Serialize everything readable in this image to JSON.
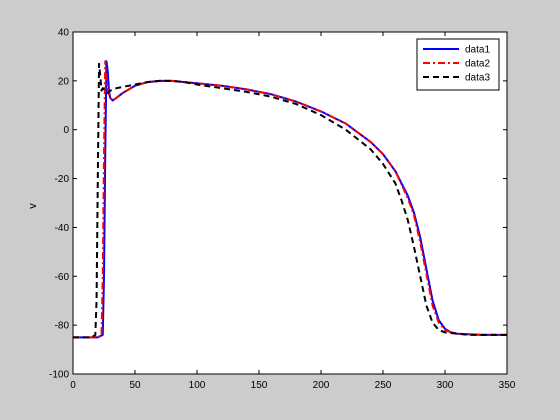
{
  "chart_data": {
    "type": "line",
    "title": "",
    "xlabel": "",
    "ylabel": "v",
    "xlim": [
      0,
      350
    ],
    "ylim": [
      -100,
      40
    ],
    "xticks": [
      0,
      50,
      100,
      150,
      200,
      250,
      300,
      350
    ],
    "yticks": [
      -100,
      -80,
      -60,
      -40,
      -20,
      0,
      20,
      40
    ],
    "grid": false,
    "legend_position": "top-right",
    "series": [
      {
        "name": "data1",
        "color": "#0000ff",
        "style": "solid",
        "x": [
          0,
          20,
          24,
          25,
          26,
          27,
          28,
          29,
          30,
          32,
          35,
          40,
          50,
          60,
          70,
          80,
          90,
          100,
          120,
          140,
          160,
          180,
          200,
          220,
          240,
          250,
          260,
          270,
          275,
          280,
          285,
          290,
          295,
          300,
          305,
          310,
          320,
          330,
          340,
          350
        ],
        "y": [
          -85,
          -85,
          -84,
          -60,
          -10,
          28,
          24,
          16,
          13,
          12,
          13,
          15,
          18,
          19.5,
          20,
          20,
          19.5,
          19,
          18,
          16.5,
          14.5,
          11.5,
          7.5,
          2.5,
          -5,
          -10,
          -17,
          -27,
          -34,
          -44,
          -57,
          -70,
          -78,
          -81.5,
          -83,
          -83.5,
          -83.8,
          -84,
          -84,
          -84
        ]
      },
      {
        "name": "data2",
        "color": "#ff0000",
        "style": "dashdot",
        "x": [
          0,
          20,
          23,
          24,
          25,
          26,
          27,
          28,
          30,
          32,
          35,
          40,
          50,
          60,
          70,
          80,
          90,
          100,
          120,
          140,
          160,
          180,
          200,
          220,
          240,
          250,
          260,
          270,
          275,
          280,
          285,
          290,
          295,
          300,
          305,
          310,
          320,
          330,
          340,
          350
        ],
        "y": [
          -85,
          -85,
          -84,
          -60,
          -10,
          28,
          22,
          16,
          13,
          12,
          13,
          15,
          18,
          19.5,
          20,
          20,
          19.5,
          19,
          18,
          16.5,
          14.5,
          11.5,
          7.5,
          2.5,
          -5,
          -10,
          -17,
          -28,
          -35,
          -46,
          -59,
          -72,
          -79,
          -82,
          -83,
          -83.5,
          -83.8,
          -84,
          -84,
          -84
        ]
      },
      {
        "name": "data3",
        "color": "#000000",
        "style": "dashed",
        "x": [
          0,
          15,
          18,
          19,
          20,
          21,
          22,
          23,
          24,
          26,
          28,
          30,
          35,
          40,
          50,
          60,
          70,
          80,
          90,
          100,
          120,
          140,
          160,
          180,
          200,
          220,
          240,
          250,
          260,
          265,
          270,
          275,
          280,
          285,
          290,
          295,
          300,
          310,
          320,
          330,
          340,
          350
        ],
        "y": [
          -85,
          -85,
          -84,
          -70,
          -20,
          27,
          22,
          16,
          17,
          16,
          15,
          16,
          17,
          17.5,
          18.5,
          19.5,
          20,
          20,
          19.5,
          18.5,
          17,
          15.5,
          13.5,
          10.5,
          6,
          0,
          -8,
          -14,
          -22,
          -29,
          -37,
          -48,
          -60,
          -72,
          -79,
          -82,
          -83,
          -83.5,
          -84,
          -84,
          -84,
          -84
        ]
      }
    ]
  }
}
